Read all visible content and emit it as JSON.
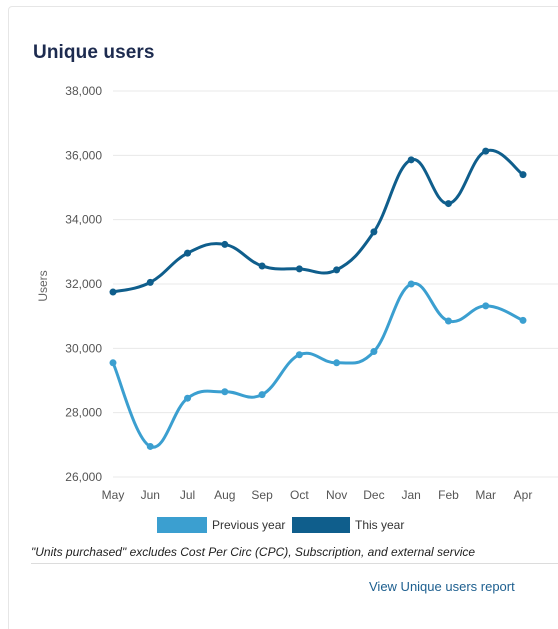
{
  "card": {
    "title": "Unique users",
    "footnote": "\"Units purchased\" excludes Cost Per Circ (CPC), Subscription, and external service",
    "report_link": "View Unique users report"
  },
  "colors": {
    "previous_year": "#3b9fd0",
    "this_year": "#0f5e8c",
    "grid": "#e8e8e8",
    "title": "#1d2b4f",
    "link": "#1d5f8f"
  },
  "chart_data": {
    "type": "line",
    "categories": [
      "May",
      "Jun",
      "Jul",
      "Aug",
      "Sep",
      "Oct",
      "Nov",
      "Dec",
      "Jan",
      "Feb",
      "Mar",
      "Apr"
    ],
    "series": [
      {
        "name": "Previous year",
        "values": [
          29550,
          26950,
          28450,
          28650,
          28560,
          29800,
          29550,
          29900,
          32000,
          30850,
          31320,
          30870
        ]
      },
      {
        "name": "This year",
        "values": [
          31750,
          32050,
          32960,
          33230,
          32560,
          32470,
          32440,
          33620,
          35860,
          34500,
          36130,
          35400
        ]
      }
    ],
    "ylabel": "Users",
    "xlabel": "",
    "ylim": [
      26000,
      38000
    ],
    "yticks": [
      "38,000",
      "36,000",
      "34,000",
      "32,000",
      "30,000",
      "28,000",
      "26,000"
    ],
    "grid": true,
    "legend": "bottom"
  }
}
